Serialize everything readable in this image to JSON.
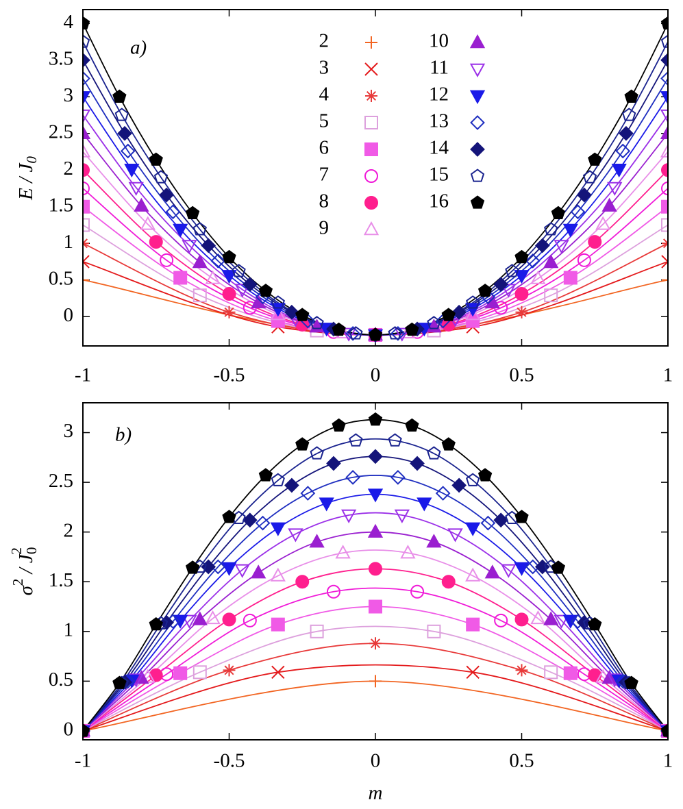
{
  "chart_data": [
    {
      "type": "line",
      "label": "a)",
      "ylabel": [
        "E / J",
        "0"
      ],
      "xlim": [
        -1,
        1
      ],
      "xticks": [
        -1,
        -0.5,
        0,
        0.5,
        1
      ],
      "ylim": [
        -0.4,
        4.19
      ],
      "yticks": [
        0,
        0.5,
        1,
        1.5,
        2,
        2.5,
        3,
        3.5,
        4
      ],
      "legend": "top",
      "series": [
        {
          "name": "2",
          "color": "#f26522",
          "marker": "plus",
          "filled": false,
          "x": [
            -1,
            0,
            1
          ],
          "values": [
            0.5,
            -0.25,
            0.5
          ]
        },
        {
          "name": "3",
          "color": "#e41a1c",
          "marker": "cross",
          "filled": false,
          "x": [
            -1,
            -0.333,
            0.333,
            1
          ],
          "values": [
            0.75,
            -0.14,
            -0.14,
            0.75
          ]
        },
        {
          "name": "4",
          "color": "#e83a3a",
          "marker": "star",
          "filled": false,
          "x": [
            -1,
            -0.5,
            0,
            0.5,
            1
          ],
          "values": [
            1,
            0.06,
            -0.25,
            0.06,
            1
          ]
        },
        {
          "name": "5",
          "color": "#dda0dd",
          "marker": "square",
          "filled": false,
          "x": [
            -1,
            -0.6,
            -0.2,
            0.2,
            0.6,
            1
          ],
          "values": [
            1.25,
            0.29,
            -0.19,
            -0.19,
            0.29,
            1.25
          ]
        },
        {
          "name": "6",
          "color": "#f05ae6",
          "marker": "square",
          "filled": true,
          "x": [
            -1,
            -0.667,
            -0.333,
            0,
            0.333,
            0.667,
            1
          ],
          "values": [
            1.5,
            0.53,
            -0.06,
            -0.25,
            -0.06,
            0.53,
            1.5
          ]
        },
        {
          "name": "7",
          "color": "#f01ad8",
          "marker": "circle",
          "filled": false,
          "x": [
            -1,
            -0.714,
            -0.429,
            -0.143,
            0.143,
            0.429,
            0.714,
            1
          ],
          "values": [
            1.75,
            0.77,
            0.12,
            -0.21,
            -0.21,
            0.12,
            0.77,
            1.75
          ]
        },
        {
          "name": "8",
          "color": "#ff1f8e",
          "marker": "circle",
          "filled": true,
          "x": [
            -1,
            -0.75,
            -0.5,
            -0.25,
            0,
            0.25,
            0.5,
            0.75,
            1
          ],
          "values": [
            2,
            1.02,
            0.31,
            -0.11,
            -0.25,
            -0.11,
            0.31,
            1.02,
            2
          ]
        },
        {
          "name": "9",
          "color": "#e88ee8",
          "marker": "triangle",
          "filled": false,
          "x": [
            -1,
            -0.778,
            -0.556,
            -0.333,
            -0.111,
            0.111,
            0.333,
            0.556,
            0.778,
            1
          ],
          "values": [
            2.25,
            1.26,
            0.52,
            0.03,
            -0.22,
            -0.22,
            0.03,
            0.52,
            1.26,
            2.25
          ]
        },
        {
          "name": "10",
          "color": "#9a1fd0",
          "marker": "triangle",
          "filled": true,
          "x": [
            -1,
            -0.8,
            -0.6,
            -0.4,
            -0.2,
            0,
            0.2,
            0.4,
            0.6,
            0.8,
            1
          ],
          "values": [
            2.5,
            1.51,
            0.74,
            0.19,
            -0.14,
            -0.25,
            -0.14,
            0.19,
            0.74,
            1.51,
            2.5
          ]
        },
        {
          "name": "11",
          "color": "#9b30e8",
          "marker": "down-triangle",
          "filled": false,
          "x": [
            -1,
            -0.818,
            -0.636,
            -0.455,
            -0.273,
            -0.091,
            0.091,
            0.273,
            0.455,
            0.636,
            0.818,
            1
          ],
          "values": [
            2.75,
            1.76,
            0.97,
            0.37,
            -0.03,
            -0.23,
            -0.23,
            -0.03,
            0.37,
            0.97,
            1.76,
            2.75
          ]
        },
        {
          "name": "12",
          "color": "#1a1ae8",
          "marker": "down-triangle",
          "filled": true,
          "x": [
            -1,
            -0.833,
            -0.667,
            -0.5,
            -0.333,
            -0.167,
            0,
            0.167,
            0.333,
            0.5,
            0.667,
            0.833,
            1
          ],
          "values": [
            3,
            2.01,
            1.19,
            0.56,
            0.11,
            -0.16,
            -0.25,
            -0.16,
            0.11,
            0.56,
            1.19,
            2.01,
            3
          ]
        },
        {
          "name": "13",
          "color": "#1f2fc0",
          "marker": "diamond",
          "filled": false,
          "x": [
            -1,
            -0.846,
            -0.692,
            -0.538,
            -0.385,
            -0.231,
            -0.077,
            0.077,
            0.231,
            0.385,
            0.538,
            0.692,
            0.846,
            1
          ],
          "values": [
            3.25,
            2.26,
            1.43,
            0.76,
            0.27,
            -0.06,
            -0.23,
            -0.23,
            -0.06,
            0.27,
            0.76,
            1.43,
            2.26,
            3.25
          ]
        },
        {
          "name": "14",
          "color": "#14147a",
          "marker": "diamond",
          "filled": true,
          "x": [
            -1,
            -0.857,
            -0.714,
            -0.571,
            -0.429,
            -0.286,
            -0.143,
            0,
            0.143,
            0.286,
            0.429,
            0.571,
            0.714,
            0.857,
            1
          ],
          "values": [
            3.5,
            2.5,
            1.66,
            0.97,
            0.44,
            0.06,
            -0.17,
            -0.25,
            -0.17,
            0.06,
            0.44,
            0.97,
            1.66,
            2.5,
            3.5
          ]
        },
        {
          "name": "15",
          "color": "#1a238f",
          "marker": "pentagon",
          "filled": false,
          "x": [
            -1,
            -0.867,
            -0.733,
            -0.6,
            -0.467,
            -0.333,
            -0.2,
            -0.067,
            0.067,
            0.2,
            0.333,
            0.467,
            0.6,
            0.733,
            0.867,
            1
          ],
          "values": [
            3.75,
            2.75,
            1.9,
            1.19,
            0.62,
            0.19,
            -0.09,
            -0.23,
            -0.23,
            -0.09,
            0.19,
            0.62,
            1.19,
            1.9,
            2.75,
            3.75
          ]
        },
        {
          "name": "16",
          "color": "#000000",
          "marker": "pentagon",
          "filled": true,
          "x": [
            -1,
            -0.875,
            -0.75,
            -0.625,
            -0.5,
            -0.375,
            -0.25,
            -0.125,
            0,
            0.125,
            0.25,
            0.375,
            0.5,
            0.625,
            0.75,
            0.875,
            1
          ],
          "values": [
            4,
            3,
            2.14,
            1.41,
            0.81,
            0.35,
            0.02,
            -0.18,
            -0.25,
            -0.18,
            0.02,
            0.35,
            0.81,
            1.41,
            2.14,
            3,
            4
          ]
        }
      ]
    },
    {
      "type": "line",
      "label": "b)",
      "ylabel": [
        "σ",
        "2",
        " / J",
        "0",
        "2"
      ],
      "xlabel": "m",
      "xlim": [
        -1,
        1
      ],
      "xticks": [
        -1,
        -0.5,
        0,
        0.5,
        1
      ],
      "ylim": [
        -0.09,
        3.3
      ],
      "yticks": [
        0,
        0.5,
        1,
        1.5,
        2,
        2.5,
        3
      ],
      "series": [
        {
          "color": "#f26522",
          "marker": "plus",
          "filled": false,
          "x": [
            -1,
            0,
            1
          ],
          "values": [
            0,
            0.5,
            0
          ]
        },
        {
          "color": "#e41a1c",
          "marker": "cross",
          "filled": false,
          "x": [
            -1,
            -0.333,
            0.333,
            1
          ],
          "values": [
            0,
            0.59,
            0.59,
            0
          ]
        },
        {
          "color": "#e83a3a",
          "marker": "star",
          "filled": false,
          "x": [
            -1,
            -0.5,
            0,
            0.5,
            1
          ],
          "values": [
            0,
            0.61,
            0.88,
            0.61,
            0
          ]
        },
        {
          "color": "#dda0dd",
          "marker": "square",
          "filled": false,
          "x": [
            -1,
            -0.6,
            -0.2,
            0.2,
            0.6,
            1
          ],
          "values": [
            0,
            0.59,
            1,
            1,
            0.59,
            0
          ]
        },
        {
          "color": "#f05ae6",
          "marker": "square",
          "filled": true,
          "x": [
            -1,
            -0.667,
            -0.333,
            0,
            0.333,
            0.667,
            1
          ],
          "values": [
            0,
            0.58,
            1.07,
            1.25,
            1.07,
            0.58,
            0
          ]
        },
        {
          "color": "#f01ad8",
          "marker": "circle",
          "filled": false,
          "x": [
            -1,
            -0.714,
            -0.429,
            -0.143,
            0.143,
            0.429,
            0.714,
            1
          ],
          "values": [
            0,
            0.57,
            1.11,
            1.4,
            1.4,
            1.11,
            0.57,
            0
          ]
        },
        {
          "color": "#ff1f8e",
          "marker": "circle",
          "filled": true,
          "x": [
            -1,
            -0.75,
            -0.5,
            -0.25,
            0,
            0.25,
            0.5,
            0.75,
            1
          ],
          "values": [
            0,
            0.56,
            1.12,
            1.5,
            1.63,
            1.5,
            1.12,
            0.56,
            0
          ]
        },
        {
          "color": "#e88ee8",
          "marker": "triangle",
          "filled": false,
          "x": [
            -1,
            -0.778,
            -0.556,
            -0.333,
            -0.111,
            0.111,
            0.333,
            0.556,
            0.778,
            1
          ],
          "values": [
            0,
            0.54,
            1.13,
            1.56,
            1.79,
            1.79,
            1.56,
            1.13,
            0.54,
            0
          ]
        },
        {
          "color": "#9a1fd0",
          "marker": "triangle",
          "filled": true,
          "x": [
            -1,
            -0.8,
            -0.6,
            -0.4,
            -0.2,
            0,
            0.2,
            0.4,
            0.6,
            0.8,
            1
          ],
          "values": [
            0,
            0.53,
            1.12,
            1.59,
            1.9,
            2,
            1.9,
            1.59,
            1.12,
            0.53,
            0
          ]
        },
        {
          "color": "#9b30e8",
          "marker": "down-triangle",
          "filled": false,
          "x": [
            -1,
            -0.818,
            -0.636,
            -0.455,
            -0.273,
            -0.091,
            0.091,
            0.273,
            0.455,
            0.636,
            0.818,
            1
          ],
          "values": [
            0,
            0.52,
            1.11,
            1.62,
            1.98,
            2.17,
            2.17,
            1.98,
            1.62,
            1.11,
            0.52,
            0
          ]
        },
        {
          "color": "#1a1ae8",
          "marker": "down-triangle",
          "filled": true,
          "x": [
            -1,
            -0.833,
            -0.667,
            -0.5,
            -0.333,
            -0.167,
            0,
            0.167,
            0.333,
            0.5,
            0.667,
            0.833,
            1
          ],
          "values": [
            0,
            0.51,
            1.11,
            1.64,
            2.04,
            2.29,
            2.38,
            2.29,
            2.04,
            1.64,
            1.11,
            0.51,
            0
          ]
        },
        {
          "color": "#1f2fc0",
          "marker": "diamond",
          "filled": false,
          "x": [
            -1,
            -0.846,
            -0.692,
            -0.538,
            -0.385,
            -0.231,
            -0.077,
            0.077,
            0.231,
            0.385,
            0.538,
            0.692,
            0.846,
            1
          ],
          "values": [
            0,
            0.5,
            1.1,
            1.65,
            2.09,
            2.39,
            2.55,
            2.55,
            2.39,
            2.09,
            1.65,
            1.1,
            0.5,
            0
          ]
        },
        {
          "color": "#14147a",
          "marker": "diamond",
          "filled": true,
          "x": [
            -1,
            -0.857,
            -0.714,
            -0.571,
            -0.429,
            -0.286,
            -0.143,
            0,
            0.143,
            0.286,
            0.429,
            0.571,
            0.714,
            0.857,
            1
          ],
          "values": [
            0,
            0.49,
            1.09,
            1.65,
            2.12,
            2.47,
            2.69,
            2.76,
            2.69,
            2.47,
            2.12,
            1.65,
            1.09,
            0.49,
            0
          ]
        },
        {
          "color": "#1a238f",
          "marker": "pentagon",
          "filled": false,
          "x": [
            -1,
            -0.867,
            -0.733,
            -0.6,
            -0.467,
            -0.333,
            -0.2,
            -0.067,
            0.067,
            0.2,
            0.333,
            0.467,
            0.6,
            0.733,
            0.867,
            1
          ],
          "values": [
            0,
            0.48,
            1.08,
            1.65,
            2.14,
            2.52,
            2.79,
            2.92,
            2.92,
            2.79,
            2.52,
            2.14,
            1.65,
            1.08,
            0.48,
            0
          ]
        },
        {
          "color": "#000000",
          "marker": "pentagon",
          "filled": true,
          "x": [
            -1,
            -0.875,
            -0.75,
            -0.625,
            -0.5,
            -0.375,
            -0.25,
            -0.125,
            0,
            0.125,
            0.25,
            0.375,
            0.5,
            0.625,
            0.75,
            0.875,
            1
          ],
          "values": [
            0,
            0.48,
            1.07,
            1.64,
            2.15,
            2.57,
            2.88,
            3.07,
            3.13,
            3.07,
            2.88,
            2.57,
            2.15,
            1.64,
            1.07,
            0.48,
            0
          ]
        }
      ]
    }
  ]
}
